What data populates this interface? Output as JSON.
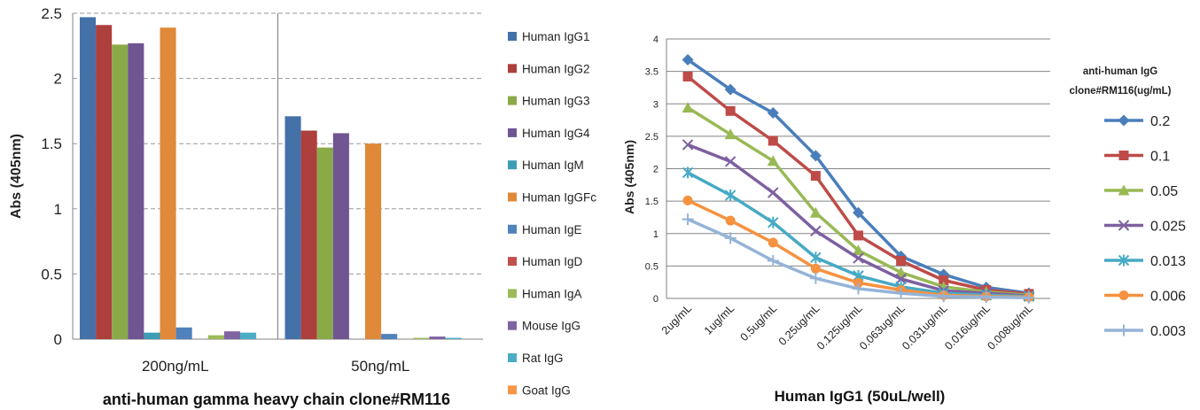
{
  "chart_data": [
    {
      "type": "bar",
      "xlabel": "anti-human gamma heavy chain clone#RM116",
      "ylabel": "Abs (405nm)",
      "ylim": [
        0,
        2.5
      ],
      "yticks": [
        "0",
        "0.5",
        "1",
        "1.5",
        "2",
        "2.5"
      ],
      "grid": true,
      "legend_position": "right",
      "categories": [
        "200ng/mL",
        "50ng/mL"
      ],
      "series": [
        {
          "name": "Human IgG1",
          "color": "#4472a8",
          "values": [
            2.47,
            1.71
          ]
        },
        {
          "name": "Human IgG2",
          "color": "#ad3f3c",
          "values": [
            2.41,
            1.6
          ]
        },
        {
          "name": "Human IgG3",
          "color": "#8aaa48",
          "values": [
            2.26,
            1.47
          ]
        },
        {
          "name": "Human IgG4",
          "color": "#6f5592",
          "values": [
            2.27,
            1.58
          ]
        },
        {
          "name": "Human IgM",
          "color": "#3e9cb4",
          "values": [
            0.05,
            0.0
          ]
        },
        {
          "name": "Human IgGFc",
          "color": "#e1893a",
          "values": [
            2.39,
            1.5
          ]
        },
        {
          "name": "Human IgE",
          "color": "#4f81bd",
          "values": [
            0.09,
            0.04
          ]
        },
        {
          "name": "Human IgD",
          "color": "#c0504d",
          "values": [
            0.0,
            0.0
          ]
        },
        {
          "name": "Human IgA",
          "color": "#9bbb59",
          "values": [
            0.03,
            0.01
          ]
        },
        {
          "name": "Mouse IgG",
          "color": "#8064a2",
          "values": [
            0.06,
            0.02
          ]
        },
        {
          "name": "Rat IgG",
          "color": "#4bacc6",
          "values": [
            0.05,
            0.01
          ]
        },
        {
          "name": "Goat IgG",
          "color": "#f79646",
          "values": [
            0.0,
            0.0
          ]
        }
      ]
    },
    {
      "type": "line",
      "xlabel": "Human IgG1 (50uL/well)",
      "ylabel": "Abs (405nm)",
      "ylim": [
        0,
        4
      ],
      "yticks": [
        "0",
        "0.5",
        "1",
        "1.5",
        "2",
        "2.5",
        "3",
        "3.5",
        "4"
      ],
      "grid": true,
      "legend_position": "right",
      "legend_title": [
        "anti-human IgG",
        "clone#RM116(ug/mL)"
      ],
      "x": [
        "2ug/mL",
        "1ug/mL",
        "0.5ug/mL",
        "0.25ug/mL",
        "0.125ug/mL",
        "0.063ug/mL",
        "0.031ug/mL",
        "0.016ug/mL",
        "0.008ug/mL"
      ],
      "series": [
        {
          "name": "0.2",
          "color": "#4a7ebb",
          "marker": "diamond",
          "values": [
            3.68,
            3.22,
            2.86,
            2.2,
            1.32,
            0.65,
            0.37,
            0.17,
            0.08
          ]
        },
        {
          "name": "0.1",
          "color": "#be4b48",
          "marker": "square",
          "values": [
            3.42,
            2.89,
            2.43,
            1.89,
            0.97,
            0.58,
            0.28,
            0.13,
            0.07
          ]
        },
        {
          "name": "0.05",
          "color": "#98b954",
          "marker": "triangle",
          "values": [
            2.94,
            2.53,
            2.12,
            1.32,
            0.74,
            0.4,
            0.18,
            0.1,
            0.05
          ]
        },
        {
          "name": "0.025",
          "color": "#7d60a0",
          "marker": "x",
          "values": [
            2.37,
            2.11,
            1.63,
            1.04,
            0.62,
            0.3,
            0.12,
            0.08,
            0.04
          ]
        },
        {
          "name": "0.013",
          "color": "#46aac5",
          "marker": "star",
          "values": [
            1.94,
            1.59,
            1.17,
            0.63,
            0.35,
            0.18,
            0.08,
            0.05,
            0.03
          ]
        },
        {
          "name": "0.006",
          "color": "#f69240",
          "marker": "circle",
          "values": [
            1.51,
            1.2,
            0.86,
            0.46,
            0.24,
            0.13,
            0.05,
            0.03,
            0.02
          ]
        },
        {
          "name": "0.003",
          "color": "#95b3d7",
          "marker": "plus",
          "values": [
            1.22,
            0.93,
            0.58,
            0.31,
            0.15,
            0.08,
            0.03,
            0.02,
            0.01
          ]
        }
      ]
    }
  ]
}
